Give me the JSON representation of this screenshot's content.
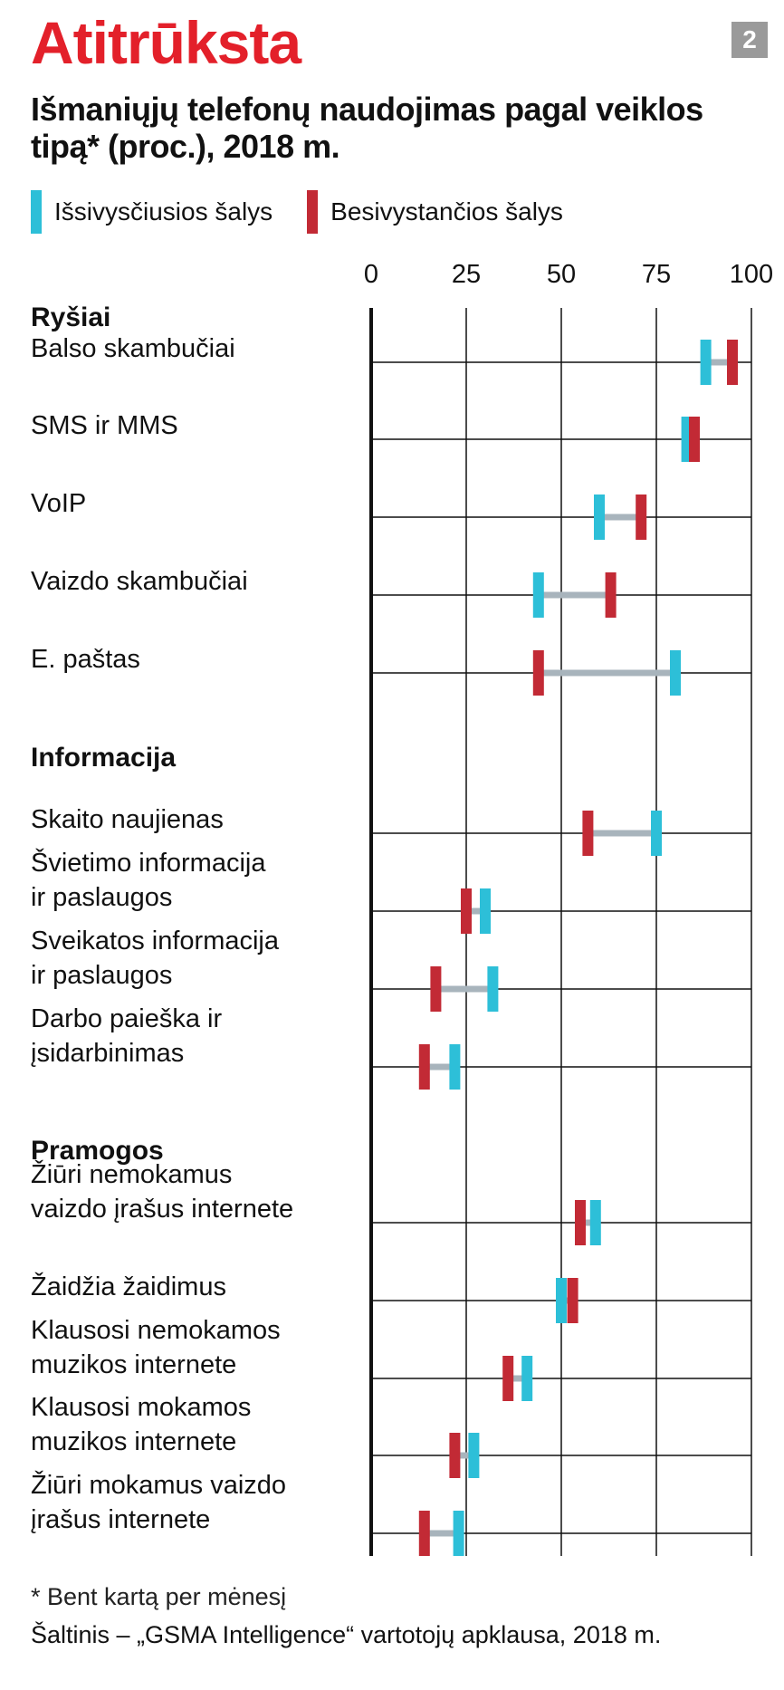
{
  "header": {
    "supertitle": "Atitrūksta",
    "badge": "2",
    "title": "Išmaniųjų telefonų naudojimas pagal veiklos tipą* (proc.), 2018 m."
  },
  "legend": [
    {
      "label": "Išsivysčiusios šalys",
      "color": "#2dbfd8"
    },
    {
      "label": "Besivystančios šalys",
      "color": "#c22a35"
    }
  ],
  "footer": {
    "footnote": "* Bent kartą per mėnesį",
    "source": "Šaltinis – „GSMA Intelligence“ vartotojų apklausa, 2018 m."
  },
  "chart_data": {
    "type": "dot",
    "xlim": [
      0,
      100
    ],
    "xticks": [
      "0",
      "25",
      "50",
      "75",
      "100"
    ],
    "colors": {
      "developed": "#2dbfd8",
      "developing": "#c22a35",
      "connector": "#a8b4bc"
    },
    "series": [
      {
        "name": "Išsivysčiusios šalys",
        "key": "developed"
      },
      {
        "name": "Besivystančios šalys",
        "key": "developing"
      }
    ],
    "groups": [
      {
        "name": "Ryšiai",
        "items": [
          {
            "label": [
              "Balso skambučiai"
            ],
            "developed": 88,
            "developing": 95
          },
          {
            "label": [
              "SMS ir MMS"
            ],
            "developed": 83,
            "developing": 85
          },
          {
            "label": [
              "VoIP"
            ],
            "developed": 60,
            "developing": 71
          },
          {
            "label": [
              "Vaizdo skambučiai"
            ],
            "developed": 44,
            "developing": 63
          },
          {
            "label": [
              "E. paštas"
            ],
            "developed": 80,
            "developing": 44
          }
        ]
      },
      {
        "name": "Informacija",
        "items": [
          {
            "label": [
              "Skaito naujienas"
            ],
            "developed": 75,
            "developing": 57
          },
          {
            "label": [
              "Švietimo informacija",
              "ir paslaugos"
            ],
            "developed": 30,
            "developing": 25
          },
          {
            "label": [
              "Sveikatos informacija",
              "ir paslaugos"
            ],
            "developed": 32,
            "developing": 17
          },
          {
            "label": [
              "Darbo paieška ir",
              "įsidarbinimas"
            ],
            "developed": 22,
            "developing": 14
          }
        ]
      },
      {
        "name": "Pramogos",
        "items": [
          {
            "label": [
              "Žiūri nemokamus",
              "vaizdo įrašus internete"
            ],
            "developed": 59,
            "developing": 55
          },
          {
            "label": [
              "Žaidžia žaidimus"
            ],
            "developed": 50,
            "developing": 53
          },
          {
            "label": [
              "Klausosi nemokamos",
              "muzikos internete"
            ],
            "developed": 41,
            "developing": 36
          },
          {
            "label": [
              "Klausosi mokamos",
              "muzikos internete"
            ],
            "developed": 27,
            "developing": 22
          },
          {
            "label": [
              "Žiūri mokamus vaizdo",
              "įrašus internete"
            ],
            "developed": 23,
            "developing": 14
          }
        ]
      }
    ]
  }
}
